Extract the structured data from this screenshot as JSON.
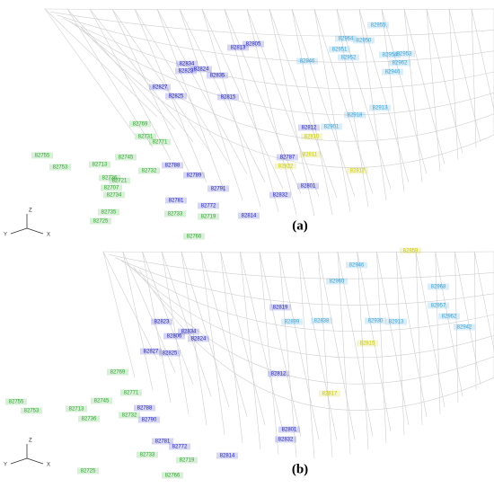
{
  "panels": [
    {
      "caption": "(a)",
      "axes": {
        "x": "X",
        "y": "Y",
        "z": "Z"
      },
      "groups": [
        {
          "color": "#1f1fbf",
          "labels": [
            "82805",
            "82813",
            "82834",
            "82823",
            "82824",
            "82835",
            "82827",
            "82825",
            "82815",
            "82812",
            "82787",
            "82788",
            "82789",
            "82791",
            "82814",
            "82832",
            "82801",
            "82781",
            "82772"
          ]
        },
        {
          "color": "#2ea82e",
          "labels": [
            "82769",
            "82731",
            "82771",
            "82755",
            "82753",
            "82713",
            "82736",
            "82745",
            "82732",
            "82707",
            "82721",
            "82734",
            "82735",
            "82733",
            "82719",
            "82766",
            "82725"
          ]
        },
        {
          "color": "#c8c800",
          "labels": [
            "82810",
            "82817",
            "82811",
            "82822"
          ]
        },
        {
          "color": "#3aa0d8",
          "labels": [
            "82955",
            "82950",
            "82964",
            "82951",
            "82946",
            "82952",
            "82962",
            "82953",
            "82954",
            "82940",
            "82913",
            "82918",
            "82901"
          ]
        }
      ]
    },
    {
      "caption": "(b)",
      "axes": {
        "x": "X",
        "y": "Y",
        "z": "Z"
      },
      "groups": [
        {
          "color": "#1f1fbf",
          "labels": [
            "82819",
            "82823",
            "82806",
            "82834",
            "82824",
            "82827",
            "82825",
            "82812",
            "82788",
            "82790",
            "82814",
            "82801",
            "82832",
            "82781",
            "82772"
          ]
        },
        {
          "color": "#2ea82e",
          "labels": [
            "82769",
            "82771",
            "82755",
            "82753",
            "82745",
            "82713",
            "82736",
            "82732",
            "82733",
            "82719",
            "82766",
            "82725"
          ]
        },
        {
          "color": "#c8c800",
          "labels": [
            "82959",
            "82815",
            "82817"
          ]
        },
        {
          "color": "#3aa0d8",
          "labels": [
            "82960",
            "82968",
            "82962",
            "82957",
            "82942",
            "82913",
            "82930",
            "82899",
            "82838",
            "82946"
          ]
        }
      ]
    }
  ]
}
